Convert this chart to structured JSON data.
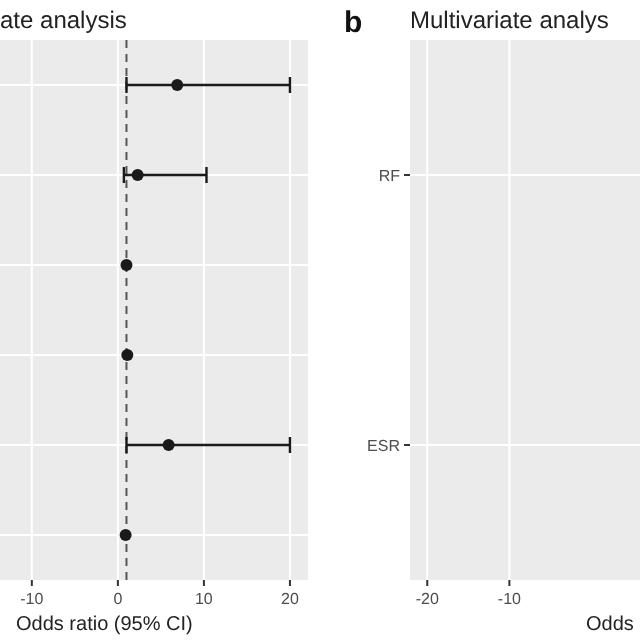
{
  "chart_data": [
    {
      "type": "scatter",
      "orientation": "horizontal",
      "title": "ate analysis",
      "xlabel": "Odds ratio (95% CI)",
      "categories": [
        null,
        null,
        null,
        null,
        null,
        null
      ],
      "values": [
        6.9,
        2.3,
        1.0,
        1.1,
        5.9,
        0.9
      ],
      "errors": [
        [
          1.0,
          20
        ],
        [
          0.7,
          10.3
        ],
        null,
        null,
        [
          1.0,
          20
        ],
        null
      ],
      "color": "#1a1a1a",
      "marker": "circle",
      "xlim": [
        -13.7,
        22.1
      ],
      "xticks": [
        -10,
        0,
        10,
        20
      ],
      "grid": true,
      "ref_lines": [
        {
          "axis": "x",
          "value": 1,
          "line_style": "dashed",
          "color": "#555555"
        }
      ]
    },
    {
      "type": "scatter",
      "orientation": "horizontal",
      "title": "Multivariate analys",
      "xlabel": "Odds",
      "annotations": [
        "b"
      ],
      "categories": [
        "RF",
        "ESR"
      ],
      "values": [
        null,
        null
      ],
      "xlim": [
        -22.1,
        5.9
      ],
      "xticks": [
        -20,
        -10
      ],
      "grid": true
    }
  ]
}
